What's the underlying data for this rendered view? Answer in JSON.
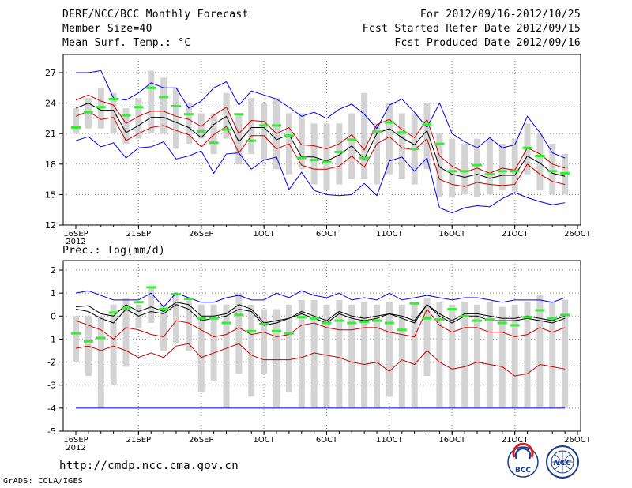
{
  "header": {
    "title": "DERF/NCC/BCC Monthly Forecast",
    "member_size": "Member Size=40",
    "variable": "Mean Surf. Temp.: °C",
    "period": "For 2012/09/16-2012/10/25",
    "fcst_started": "Fcst Started Refer Date 2012/09/15",
    "fcst_produced": "Fcst Produced Date 2012/09/16"
  },
  "footer": {
    "url": "http://cmdp.ncc.cma.gov.cn",
    "grads": "GrADS: COLA/IGES",
    "logo_bcc": "BCC",
    "logo_ncc": "NCC"
  },
  "colors": {
    "box": "#d3d3d3",
    "ensemble_mean": "#000000",
    "spread_inner": "#cc0000",
    "spread_outer": "#0000ee",
    "observed_mark": "#33ee33",
    "grid": "#888888"
  },
  "chart_data": [
    {
      "type": "line",
      "title": "Mean Surf. Temp.: °C",
      "xlabel": "",
      "ylabel": "°C",
      "ylim": [
        12,
        28
      ],
      "yticks": [
        12,
        15,
        18,
        21,
        24,
        27
      ],
      "ytick_labels": [
        "12",
        "15",
        "18",
        "21",
        "24",
        "27"
      ],
      "x_days": [
        0,
        40
      ],
      "xticks": [
        0,
        5,
        10,
        15,
        20,
        25,
        30,
        35,
        40
      ],
      "xtick_labels": [
        "16SEP",
        "21SEP",
        "26SEP",
        "1OCT",
        "6OCT",
        "11OCT",
        "16OCT",
        "21OCT",
        "26OCT"
      ],
      "xtick_sublabel": "2012",
      "grid": true,
      "x": [
        0,
        1,
        2,
        3,
        4,
        5,
        6,
        7,
        8,
        9,
        10,
        11,
        12,
        13,
        14,
        15,
        16,
        17,
        18,
        19,
        20,
        21,
        22,
        23,
        24,
        25,
        26,
        27,
        28,
        29,
        30,
        31,
        32,
        33,
        34,
        35,
        36,
        37,
        38,
        39
      ],
      "series": [
        {
          "name": "max",
          "color": "#0000ee",
          "values": [
            27,
            27,
            27.2,
            24.5,
            24.3,
            25,
            26,
            25.5,
            25.5,
            23.5,
            24.2,
            25.5,
            26.1,
            23.8,
            25.2,
            24.8,
            24.4,
            23.6,
            22.7,
            23.1,
            22.5,
            23.4,
            23.9,
            22.9,
            21.5,
            23.8,
            24.4,
            23.1,
            21.6,
            24,
            21,
            20.2,
            19.6,
            20.6,
            19.6,
            19.9,
            22.7,
            21.1,
            19.1,
            18.6
          ]
        },
        {
          "name": "upper",
          "color": "#cc0000",
          "values": [
            24.3,
            24.8,
            24.2,
            23.8,
            22,
            22.7,
            23.2,
            23.2,
            22.7,
            22.4,
            21.7,
            22.8,
            23.6,
            21,
            22.3,
            22.2,
            21,
            21.6,
            19.9,
            19.8,
            19.5,
            20,
            20.9,
            19.4,
            21.9,
            22.4,
            21.4,
            20.6,
            22.4,
            18.8,
            17.8,
            17.2,
            17.6,
            17.1,
            17.6,
            17.4,
            19.6,
            19,
            18,
            17.6
          ]
        },
        {
          "name": "mean",
          "color": "#000000",
          "values": [
            23.5,
            24,
            23.3,
            23.3,
            21.1,
            21.8,
            22.6,
            22.6,
            22.1,
            21.6,
            20.6,
            21.9,
            22.7,
            20.2,
            21.6,
            21.6,
            20.4,
            20.9,
            18.7,
            18.7,
            18.3,
            18.9,
            19.8,
            18.5,
            21,
            21.5,
            20.6,
            19.9,
            21.3,
            17.7,
            17,
            16.7,
            17,
            16.6,
            16.9,
            16.9,
            18.8,
            18.1,
            17.1,
            16.8
          ]
        },
        {
          "name": "lower",
          "color": "#cc0000",
          "values": [
            22.7,
            23.2,
            22.4,
            22.6,
            20.3,
            21,
            21.6,
            21.8,
            21.3,
            20.9,
            19.7,
            20.9,
            21.7,
            19.1,
            20.8,
            20.8,
            19.5,
            20,
            17.9,
            17.5,
            17.5,
            17.8,
            18.8,
            17.7,
            20,
            20.7,
            19.6,
            19.4,
            20.5,
            16.5,
            16,
            15.8,
            16.2,
            16,
            15.9,
            16,
            18,
            17,
            16.3,
            16
          ]
        },
        {
          "name": "min",
          "color": "#0000ee",
          "values": [
            20.3,
            20.7,
            19.7,
            20.1,
            18.6,
            19.6,
            19.7,
            20.2,
            18.5,
            18.8,
            19.3,
            17.1,
            19,
            19.1,
            17.5,
            18.4,
            18.7,
            15.5,
            17.2,
            15.4,
            15,
            14.9,
            15,
            16.1,
            14.9,
            18.3,
            18.7,
            17.3,
            18.6,
            13.7,
            13.2,
            13.7,
            13.9,
            13.8,
            14.6,
            15.2,
            14.7,
            14.3,
            14,
            14.2
          ]
        }
      ],
      "boxes": [
        [
          21,
          23.5
        ],
        [
          21.5,
          24.5
        ],
        [
          21.5,
          25.5
        ],
        [
          21,
          25
        ],
        [
          20,
          23.5
        ],
        [
          20.5,
          24.5
        ],
        [
          21,
          27.2
        ],
        [
          21,
          26.5
        ],
        [
          19.5,
          25.5
        ],
        [
          20,
          24
        ],
        [
          20.5,
          23
        ],
        [
          19,
          23
        ],
        [
          20.5,
          25
        ],
        [
          18,
          22.8
        ],
        [
          19,
          24.5
        ],
        [
          18.5,
          24
        ],
        [
          17.5,
          24.5
        ],
        [
          17,
          23
        ],
        [
          17.5,
          23
        ],
        [
          16,
          22
        ],
        [
          15.5,
          22
        ],
        [
          16,
          22
        ],
        [
          16.5,
          23
        ],
        [
          16.5,
          25
        ],
        [
          16,
          22
        ],
        [
          17,
          24
        ],
        [
          16.5,
          23
        ],
        [
          16,
          23
        ],
        [
          17.5,
          24
        ],
        [
          14.8,
          21
        ],
        [
          14.8,
          20.5
        ],
        [
          15,
          20
        ],
        [
          14.8,
          20.5
        ],
        [
          15,
          20.5
        ],
        [
          15.5,
          20
        ],
        [
          15.3,
          20.5
        ],
        [
          17,
          22
        ],
        [
          15.5,
          21
        ],
        [
          15,
          20
        ],
        [
          15,
          19
        ]
      ],
      "observed": [
        21.6,
        23.1,
        23.6,
        24.4,
        22.8,
        23.6,
        25.5,
        24.6,
        23.7,
        22.9,
        21.2,
        20.1,
        21.4,
        22.9,
        20.3,
        21.8,
        21.8,
        20.8,
        18.6,
        18.4,
        18.2,
        19.2,
        20.4,
        18.6,
        21.2,
        22.1,
        21.1,
        19.5,
        21.9,
        20,
        17.3,
        17.3,
        17.9,
        17,
        17.3,
        17.3,
        19.6,
        18.8,
        17.3,
        17.1
      ]
    },
    {
      "type": "line",
      "title": "Prec.: log(mm/d)",
      "xlabel": "",
      "ylabel": "log(mm/d)",
      "ylim": [
        -5,
        2
      ],
      "yticks": [
        -5,
        -4,
        -3,
        -2,
        -1,
        0,
        1,
        2
      ],
      "ytick_labels": [
        "-5",
        "-4",
        "-3",
        "-2",
        "-1",
        "0",
        "1",
        "2"
      ],
      "x_days": [
        0,
        40
      ],
      "xticks": [
        0,
        5,
        10,
        15,
        20,
        25,
        30,
        35,
        40
      ],
      "xtick_labels": [
        "16SEP",
        "21SEP",
        "26SEP",
        "1OCT",
        "6OCT",
        "11OCT",
        "16OCT",
        "21OCT",
        "26OCT"
      ],
      "xtick_sublabel": "2012",
      "grid": true,
      "x": [
        0,
        1,
        2,
        3,
        4,
        5,
        6,
        7,
        8,
        9,
        10,
        11,
        12,
        13,
        14,
        15,
        16,
        17,
        18,
        19,
        20,
        21,
        22,
        23,
        24,
        25,
        26,
        27,
        28,
        29,
        30,
        31,
        32,
        33,
        34,
        35,
        36,
        37,
        38,
        39
      ],
      "series": [
        {
          "name": "max",
          "color": "#0000ee",
          "values": [
            1,
            1.1,
            0.9,
            0.7,
            0.7,
            0.7,
            1,
            0.4,
            1,
            0.8,
            0.6,
            0.6,
            0.8,
            0.9,
            0.7,
            0.7,
            1,
            0.8,
            1.1,
            0.9,
            0.8,
            1,
            0.7,
            0.8,
            0.7,
            1,
            0.7,
            0.8,
            0.9,
            0.8,
            0.7,
            0.8,
            0.8,
            0.7,
            0.6,
            0.7,
            0.7,
            0.7,
            0.6,
            0.8
          ]
        },
        {
          "name": "upper",
          "color": "#000000",
          "values": [
            0.4,
            0.45,
            0.1,
            0,
            0.5,
            0.2,
            0.4,
            0.2,
            0.6,
            0.5,
            0,
            0,
            0.1,
            0.5,
            0.3,
            -0.3,
            -0.2,
            -0.1,
            0.2,
            0,
            -0.2,
            0.2,
            0,
            -0.1,
            0,
            0.1,
            0,
            -0.2,
            0.5,
            0.1,
            -0.2,
            0.1,
            0.1,
            0,
            -0.1,
            -0.1,
            0,
            -0.1,
            -0.2,
            0
          ]
        },
        {
          "name": "mean",
          "color": "#000000",
          "values": [
            0.3,
            0.2,
            -0.1,
            -0.3,
            0.3,
            0,
            0.2,
            0.1,
            0.5,
            0.3,
            -0.2,
            -0.1,
            0,
            0.3,
            0.2,
            -0.4,
            -0.3,
            -0.1,
            0.1,
            -0.1,
            -0.3,
            0.1,
            -0.1,
            -0.2,
            -0.1,
            0.1,
            -0.1,
            -0.3,
            0.5,
            0,
            -0.3,
            0,
            0,
            -0.2,
            -0.2,
            -0.2,
            -0.1,
            -0.2,
            -0.3,
            -0.1
          ]
        },
        {
          "name": "lower",
          "color": "#cc0000",
          "values": [
            -0.2,
            -0.4,
            -0.6,
            -1,
            -0.5,
            -0.6,
            -0.8,
            -0.9,
            -0.2,
            -0.3,
            -0.6,
            -0.9,
            -0.8,
            -0.5,
            -0.8,
            -0.7,
            -0.9,
            -0.8,
            -0.4,
            -0.3,
            -0.5,
            -0.6,
            -0.6,
            -0.5,
            -0.5,
            -0.7,
            -0.8,
            -0.9,
            0.3,
            -0.4,
            -0.7,
            -0.5,
            -0.5,
            -0.7,
            -0.7,
            -0.9,
            -0.8,
            -0.5,
            -0.7,
            -0.5
          ]
        },
        {
          "name": "low",
          "color": "#cc0000",
          "values": [
            -1.4,
            -1.3,
            -1.5,
            -1.3,
            -1.5,
            -1.8,
            -1.6,
            -1.8,
            -1.3,
            -1.2,
            -1.8,
            -1.6,
            -1.4,
            -1.2,
            -1.7,
            -1.9,
            -1.9,
            -1.9,
            -1.8,
            -1.6,
            -1.7,
            -1.8,
            -2,
            -2.1,
            -2,
            -2.4,
            -1.9,
            -2.1,
            -1.5,
            -2,
            -2.3,
            -2.2,
            -2,
            -2.1,
            -2.2,
            -2.6,
            -2.5,
            -2.1,
            -2.2,
            -2.3
          ]
        },
        {
          "name": "min",
          "color": "#0000ee",
          "values": [
            -4,
            -4,
            -4,
            -4,
            -4,
            -4,
            -4,
            -4,
            -4,
            -4,
            -4,
            -4,
            -4,
            -4,
            -4,
            -4,
            -4,
            -4,
            -4,
            -4,
            -4,
            -4,
            -4,
            -4,
            -4,
            -4,
            -4,
            -4,
            -4,
            -4,
            -4,
            -4,
            -4,
            -4,
            -4,
            -4,
            -4,
            -4,
            -4,
            -4
          ]
        }
      ],
      "boxes": [
        [
          -2,
          0
        ],
        [
          -2.6,
          0
        ],
        [
          -4,
          0
        ],
        [
          -3,
          0.5
        ],
        [
          -2.2,
          0.8
        ],
        [
          -0.5,
          0.5
        ],
        [
          -0.3,
          1.3
        ],
        [
          -1.5,
          0.5
        ],
        [
          -1.2,
          1
        ],
        [
          -1.5,
          0.7
        ],
        [
          -3.3,
          0.5
        ],
        [
          -2.8,
          0.5
        ],
        [
          -4,
          0.5
        ],
        [
          -2.5,
          1
        ],
        [
          -3.5,
          0.5
        ],
        [
          -2.5,
          0.3
        ],
        [
          -4,
          0.3
        ],
        [
          -3.3,
          0.5
        ],
        [
          -4,
          0.7
        ],
        [
          -4,
          0.7
        ],
        [
          -4,
          0.5
        ],
        [
          -4,
          0.7
        ],
        [
          -4,
          0.5
        ],
        [
          -4,
          0.6
        ],
        [
          -4,
          0.5
        ],
        [
          -3.5,
          0.6
        ],
        [
          -4,
          0.5
        ],
        [
          -4,
          0.6
        ],
        [
          -2.6,
          0.8
        ],
        [
          -4,
          0.6
        ],
        [
          -4,
          0.5
        ],
        [
          -4,
          0.6
        ],
        [
          -4,
          0.5
        ],
        [
          -4,
          0.6
        ],
        [
          -4,
          0.4
        ],
        [
          -4,
          0.5
        ],
        [
          -4,
          0.6
        ],
        [
          -4,
          0.9
        ],
        [
          -4,
          0.6
        ],
        [
          -4,
          0.7
        ]
      ],
      "observed": [
        -0.75,
        -1.1,
        -0.95,
        0.15,
        0.35,
        0.6,
        1.25,
        0.3,
        0.95,
        0.75,
        -0.1,
        -0.1,
        -0.3,
        0.05,
        -0.65,
        -0.35,
        -0.65,
        -0.75,
        -0.05,
        -0.1,
        -0.3,
        -0.2,
        -0.3,
        -0.25,
        -0.2,
        -0.3,
        -0.6,
        0.55,
        -0.1,
        -0.15,
        0.3,
        0,
        -0.2,
        -0.15,
        -0.3,
        -0.4,
        -0.05,
        0.25,
        -0.1,
        0.05
      ]
    }
  ]
}
